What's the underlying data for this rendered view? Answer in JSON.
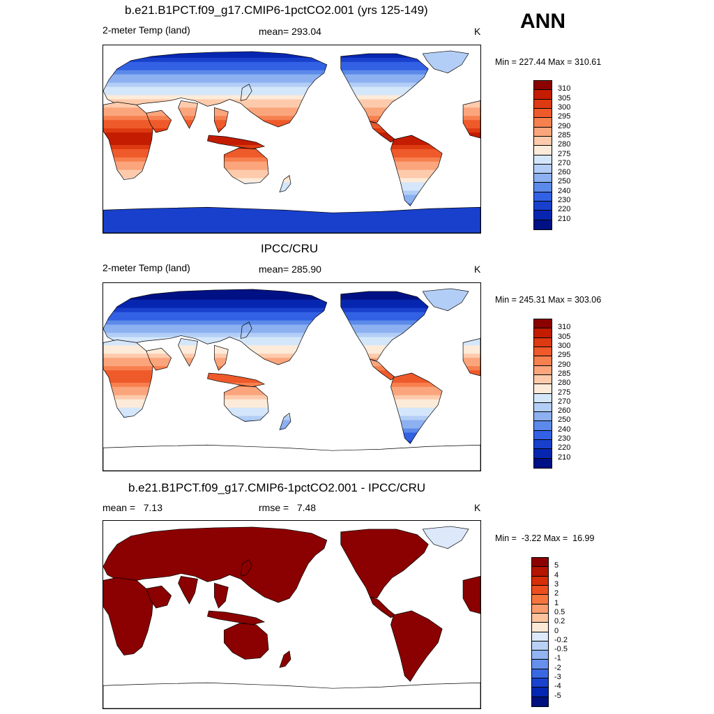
{
  "season": "ANN",
  "panels": [
    {
      "title": "b.e21.B1PCT.f09_g17.CMIP6-1pctCO2.001 (yrs 125-149)",
      "left_label": "2-meter Temp (land)",
      "center_label": "mean= 293.04",
      "units": "K",
      "minmax": "Min = 227.44 Max = 310.61",
      "scale": "abs",
      "ocean_fill": false
    },
    {
      "title": "IPCC/CRU",
      "left_label": "2-meter Temp (land)",
      "center_label": "mean= 285.90",
      "units": "K",
      "minmax": "Min = 245.31 Max = 303.06",
      "scale": "abs",
      "ocean_fill": false
    },
    {
      "title": "b.e21.B1PCT.f09_g17.CMIP6-1pctCO2.001 - IPCC/CRU",
      "left_label": "mean =   7.13",
      "center_label": "rmse =   7.48",
      "units": "K",
      "minmax": "Min =  -3.22 Max =  16.99",
      "scale": "diff",
      "ocean_fill": false
    }
  ],
  "colorbars": {
    "abs": {
      "labels": [
        "310",
        "305",
        "300",
        "295",
        "290",
        "285",
        "280",
        "275",
        "270",
        "260",
        "250",
        "240",
        "230",
        "220",
        "210"
      ],
      "colors": [
        "#8b0000",
        "#c31c00",
        "#dd3a12",
        "#ef5a2b",
        "#f7804f",
        "#fba57d",
        "#fdcbac",
        "#fdebda",
        "#d4e6fa",
        "#b3cef6",
        "#8cb0f0",
        "#5c8aea",
        "#3261e4",
        "#1940cc",
        "#0726b0",
        "#001185"
      ]
    },
    "diff": {
      "labels": [
        "5",
        "4",
        "3",
        "2",
        "1",
        "0.5",
        "0.2",
        "0",
        "-0.2",
        "-0.5",
        "-1",
        "-2",
        "-3",
        "-4",
        "-5"
      ],
      "colors": [
        "#8b0000",
        "#b51400",
        "#d62e08",
        "#ec4e1f",
        "#f6753f",
        "#fb9c6c",
        "#fdc29e",
        "#fde8d6",
        "#dde9fb",
        "#b9d1f7",
        "#92b5f2",
        "#6690ec",
        "#3a68e3",
        "#1a42cf",
        "#0526b2",
        "#00117f"
      ]
    }
  }
}
